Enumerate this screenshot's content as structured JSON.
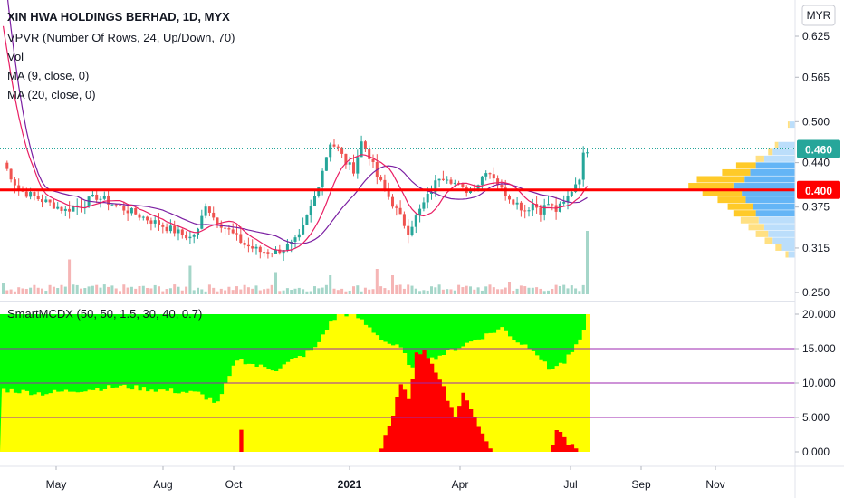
{
  "header": {
    "title": "XIN HWA HOLDINGS BERHAD, 1D, MYX",
    "indicators": [
      "VPVR (Number Of Rows, 24, Up/Down, 70)",
      "Vol",
      "MA (9, close, 0)",
      "MA (20, close, 0)"
    ],
    "currency": "MYR"
  },
  "lower_pane": {
    "label": "SmartMCDX (50, 50, 1.5, 30, 40, 0.7)"
  },
  "colors": {
    "up": "#26a69a",
    "down": "#ef5350",
    "ma9": "#e91e63",
    "ma20": "#7b1fa2",
    "support_line": "#ff0000",
    "vp_up": "#64b5f6",
    "vp_up_light": "#bbdefb",
    "vp_down": "#ffca28",
    "vp_down_light": "#ffe082",
    "mcdx_green": "#00ff00",
    "mcdx_yellow": "#ffff00",
    "mcdx_red": "#ff0000",
    "mcdx_levels": "#9c27b0",
    "current_badge": "#26a69a",
    "support_badge": "#ff0000"
  },
  "chart_data": [
    {
      "type": "candlestick",
      "x_ticks": [
        "May",
        "Aug",
        "Oct",
        "2021",
        "Apr",
        "Jul",
        "Sep",
        "Nov"
      ],
      "y_ticks": [
        "0.625",
        "0.565",
        "0.500",
        "0.440",
        "0.375",
        "0.315",
        "0.250"
      ],
      "ylim": [
        0.25,
        0.65
      ],
      "current_price": "0.460",
      "support_price": "0.400",
      "price_path": [
        [
          0,
          0.44
        ],
        [
          4,
          0.4
        ],
        [
          8,
          0.39
        ],
        [
          12,
          0.38
        ],
        [
          16,
          0.37
        ],
        [
          20,
          0.38
        ],
        [
          24,
          0.39
        ],
        [
          28,
          0.38
        ],
        [
          32,
          0.37
        ],
        [
          36,
          0.36
        ],
        [
          40,
          0.35
        ],
        [
          44,
          0.34
        ],
        [
          48,
          0.33
        ],
        [
          50,
          0.34
        ],
        [
          52,
          0.38
        ],
        [
          54,
          0.36
        ],
        [
          58,
          0.34
        ],
        [
          62,
          0.32
        ],
        [
          66,
          0.31
        ],
        [
          70,
          0.31
        ],
        [
          74,
          0.32
        ],
        [
          76,
          0.33
        ],
        [
          78,
          0.36
        ],
        [
          80,
          0.39
        ],
        [
          82,
          0.43
        ],
        [
          84,
          0.47
        ],
        [
          86,
          0.46
        ],
        [
          88,
          0.44
        ],
        [
          90,
          0.43
        ],
        [
          92,
          0.47
        ],
        [
          94,
          0.45
        ],
        [
          96,
          0.42
        ],
        [
          98,
          0.4
        ],
        [
          100,
          0.38
        ],
        [
          102,
          0.36
        ],
        [
          104,
          0.34
        ],
        [
          106,
          0.36
        ],
        [
          108,
          0.38
        ],
        [
          110,
          0.4
        ],
        [
          112,
          0.42
        ],
        [
          114,
          0.42
        ],
        [
          116,
          0.41
        ],
        [
          118,
          0.4
        ],
        [
          120,
          0.4
        ],
        [
          122,
          0.41
        ],
        [
          124,
          0.43
        ],
        [
          126,
          0.42
        ],
        [
          128,
          0.4
        ],
        [
          130,
          0.39
        ],
        [
          132,
          0.38
        ],
        [
          134,
          0.37
        ],
        [
          136,
          0.38
        ],
        [
          138,
          0.37
        ],
        [
          140,
          0.38
        ],
        [
          142,
          0.37
        ],
        [
          144,
          0.38
        ],
        [
          146,
          0.4
        ],
        [
          148,
          0.42
        ],
        [
          149,
          0.45
        ],
        [
          150,
          0.46
        ]
      ],
      "volume_spikes": [
        [
          0,
          0.18
        ],
        [
          17,
          0.55
        ],
        [
          48,
          0.45
        ],
        [
          70,
          0.35
        ],
        [
          84,
          0.3
        ],
        [
          96,
          0.4
        ],
        [
          100,
          0.3
        ],
        [
          130,
          0.2
        ],
        [
          150,
          1.0
        ]
      ],
      "volume_profile": [
        {
          "price": 0.455,
          "up": 40,
          "down": 8
        },
        {
          "price": 0.445,
          "up": 55,
          "down": 15
        },
        {
          "price": 0.435,
          "up": 70,
          "down": 35
        },
        {
          "price": 0.425,
          "up": 80,
          "down": 50
        },
        {
          "price": 0.415,
          "up": 90,
          "down": 85
        },
        {
          "price": 0.405,
          "up": 110,
          "down": 80
        },
        {
          "price": 0.395,
          "up": 95,
          "down": 70
        },
        {
          "price": 0.385,
          "up": 88,
          "down": 50
        },
        {
          "price": 0.375,
          "up": 75,
          "down": 45
        },
        {
          "price": 0.365,
          "up": 70,
          "down": 40
        },
        {
          "price": 0.355,
          "up": 65,
          "down": 32
        },
        {
          "price": 0.345,
          "up": 55,
          "down": 28
        },
        {
          "price": 0.335,
          "up": 48,
          "down": 22
        },
        {
          "price": 0.325,
          "up": 40,
          "down": 14
        },
        {
          "price": 0.315,
          "up": 25,
          "down": 10
        },
        {
          "price": 0.305,
          "up": 12,
          "down": 5
        },
        {
          "price": 0.495,
          "up": 10,
          "down": 3
        },
        {
          "price": 0.465,
          "up": 30,
          "down": 6
        }
      ]
    },
    {
      "type": "area",
      "y_ticks": [
        "20.000",
        "15.000",
        "10.000",
        "5.000",
        "0.000"
      ],
      "ylim": [
        -1,
        21
      ],
      "levels": [
        15,
        10,
        5
      ],
      "yellow_path": [
        [
          0,
          9
        ],
        [
          10,
          8.5
        ],
        [
          20,
          9
        ],
        [
          30,
          9.5
        ],
        [
          40,
          9
        ],
        [
          50,
          8.5
        ],
        [
          55,
          7
        ],
        [
          60,
          13.5
        ],
        [
          65,
          12.5
        ],
        [
          70,
          12
        ],
        [
          75,
          13.5
        ],
        [
          80,
          15
        ],
        [
          83,
          18
        ],
        [
          86,
          20
        ],
        [
          90,
          20
        ],
        [
          94,
          18
        ],
        [
          98,
          16
        ],
        [
          102,
          15
        ],
        [
          105,
          12
        ],
        [
          108,
          13
        ],
        [
          112,
          14
        ],
        [
          116,
          15
        ],
        [
          120,
          16
        ],
        [
          124,
          17
        ],
        [
          128,
          18
        ],
        [
          132,
          16
        ],
        [
          136,
          15
        ],
        [
          140,
          12
        ],
        [
          144,
          13
        ],
        [
          148,
          16
        ],
        [
          150,
          20
        ]
      ],
      "red_path": [
        [
          0,
          0
        ],
        [
          60,
          0
        ],
        [
          61,
          3
        ],
        [
          62,
          0
        ],
        [
          96,
          0
        ],
        [
          98,
          2
        ],
        [
          100,
          5
        ],
        [
          102,
          10
        ],
        [
          104,
          8
        ],
        [
          106,
          14
        ],
        [
          108,
          15
        ],
        [
          110,
          13
        ],
        [
          112,
          10
        ],
        [
          114,
          8
        ],
        [
          116,
          5
        ],
        [
          118,
          9
        ],
        [
          120,
          6
        ],
        [
          122,
          4
        ],
        [
          124,
          1
        ],
        [
          126,
          0
        ],
        [
          140,
          0
        ],
        [
          142,
          3
        ],
        [
          144,
          2
        ],
        [
          146,
          1
        ],
        [
          148,
          0
        ],
        [
          150,
          0
        ]
      ]
    }
  ]
}
